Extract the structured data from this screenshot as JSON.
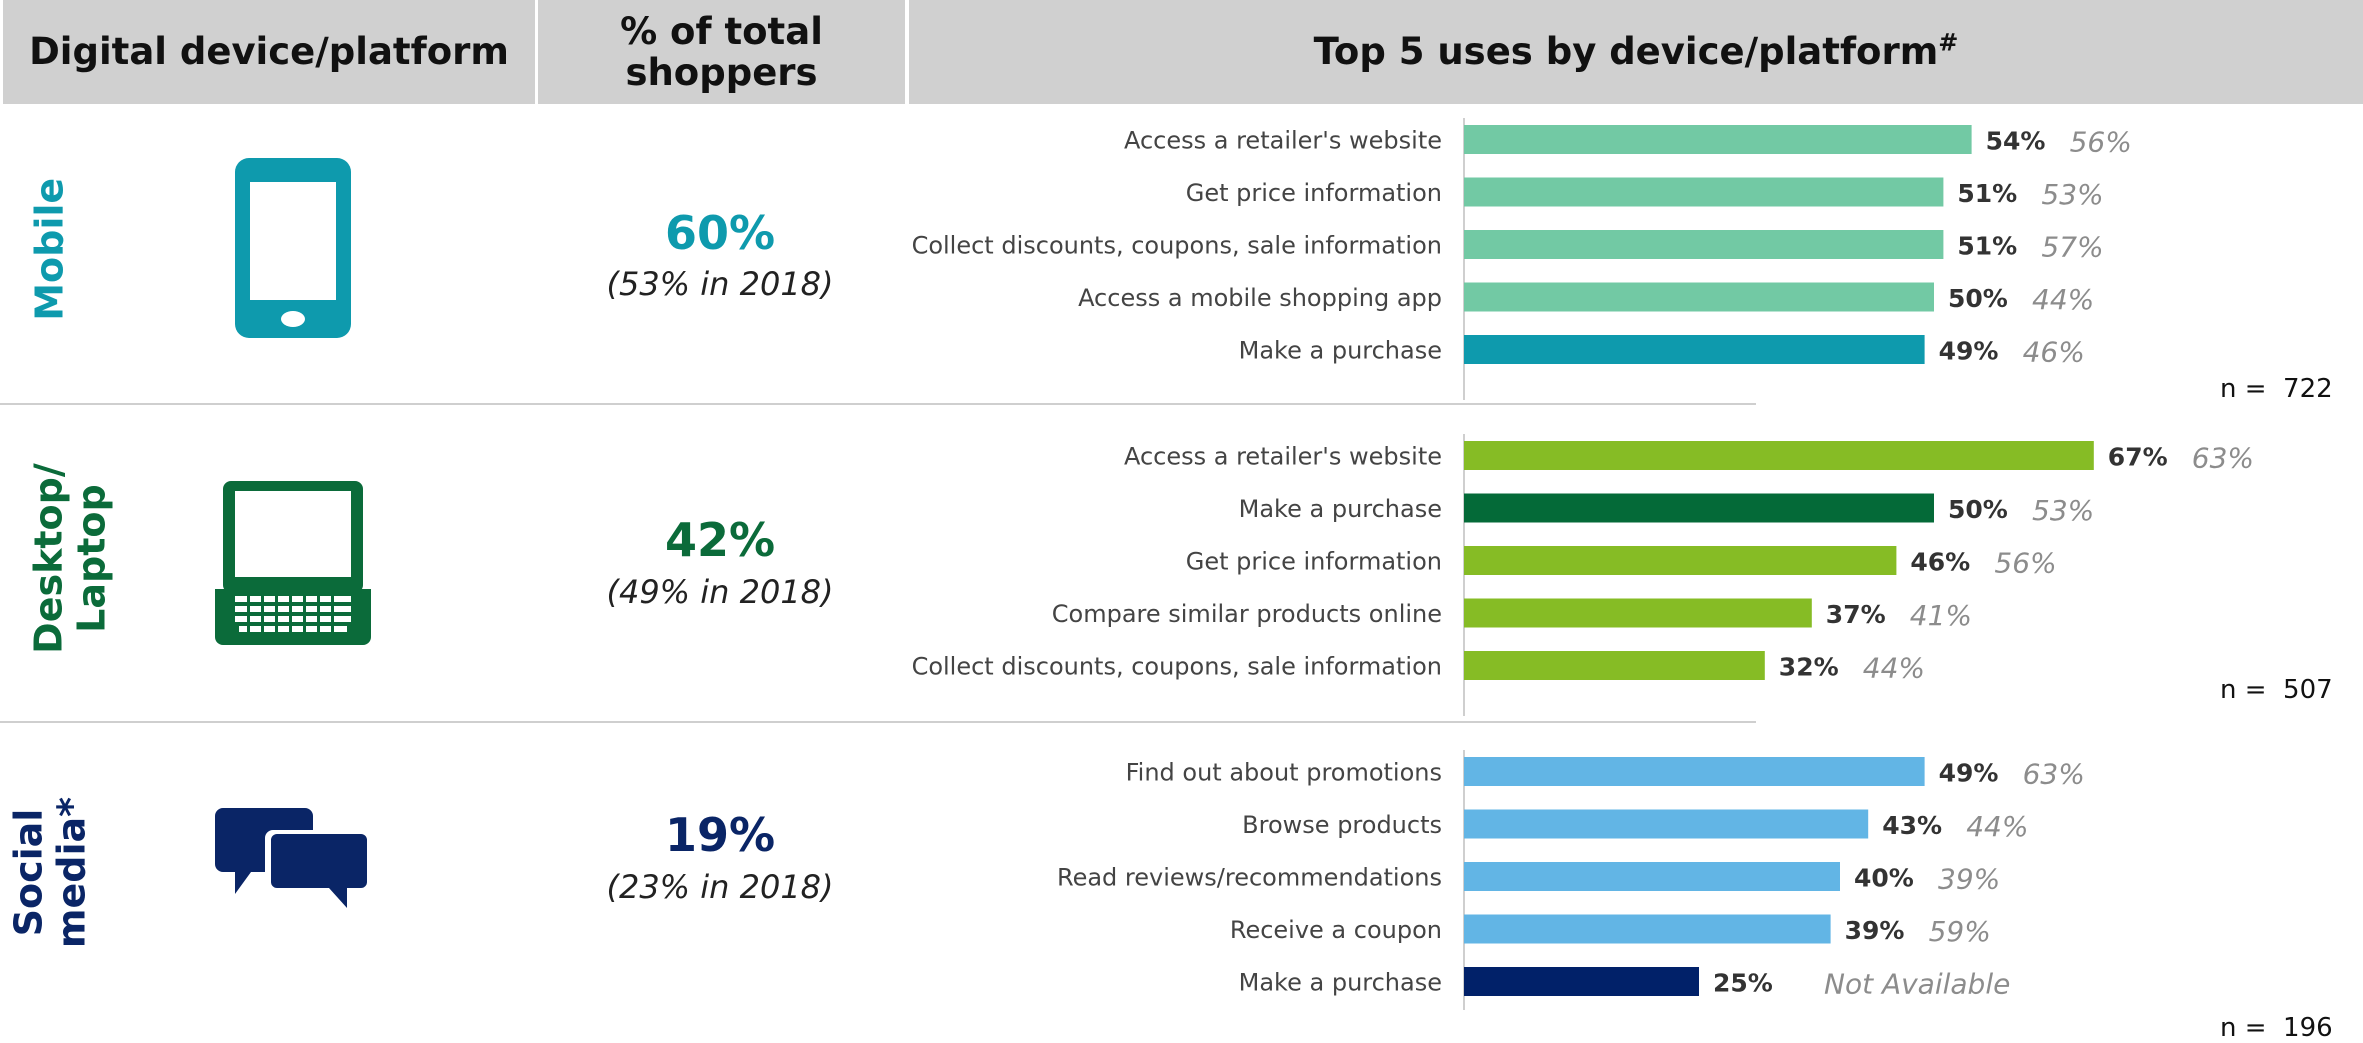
{
  "header": {
    "col1": "Digital device/platform",
    "col2": "% of total shoppers",
    "col3": "Top 5 uses by device/platform",
    "col3_mark": "#"
  },
  "sections": [
    {
      "label": "Mobile",
      "icon": "smartphone-icon",
      "color": "#0e9aad",
      "pct": "60%",
      "prior": "(53% in 2018)",
      "n": "n =  722"
    },
    {
      "label": "Desktop/ Laptop",
      "label_lines": [
        "Desktop/",
        "Laptop"
      ],
      "icon": "laptop-icon",
      "color": "#0b6b3a",
      "pct": "42%",
      "prior": "(49% in 2018)",
      "n": "n =  507"
    },
    {
      "label": "Social media*",
      "label_lines": [
        "Social",
        "media*"
      ],
      "icon": "chat-bubbles-icon",
      "color": "#0a2566",
      "pct": "19%",
      "prior": "(23% in 2018)",
      "n": "n =  196"
    }
  ],
  "chart_data": {
    "type": "bar",
    "orientation": "horizontal",
    "xlim": [
      0,
      100
    ],
    "groups": [
      {
        "name": "Mobile",
        "bar_color": "#72c9a4",
        "highlight_color": "#0e9aad",
        "items": [
          {
            "label": "Access a retailer's website",
            "value": 54,
            "value_label": "54%",
            "prior": "56%"
          },
          {
            "label": "Get price information",
            "value": 51,
            "value_label": "51%",
            "prior": "53%"
          },
          {
            "label": "Collect discounts, coupons, sale information",
            "value": 51,
            "value_label": "51%",
            "prior": "57%"
          },
          {
            "label": "Access a mobile shopping app",
            "value": 50,
            "value_label": "50%",
            "prior": "44%"
          },
          {
            "label": "Make a purchase",
            "value": 49,
            "value_label": "49%",
            "prior": "46%",
            "highlight": true
          }
        ]
      },
      {
        "name": "Desktop/Laptop",
        "bar_color": "#86bc25",
        "highlight_color": "#046a38",
        "items": [
          {
            "label": "Access a retailer's website",
            "value": 67,
            "value_label": "67%",
            "prior": "63%"
          },
          {
            "label": "Make a purchase",
            "value": 50,
            "value_label": "50%",
            "prior": "53%",
            "highlight": true
          },
          {
            "label": "Get price information",
            "value": 46,
            "value_label": "46%",
            "prior": "56%"
          },
          {
            "label": "Compare similar products online",
            "value": 37,
            "value_label": "37%",
            "prior": "41%"
          },
          {
            "label": "Collect discounts, coupons, sale information",
            "value": 32,
            "value_label": "32%",
            "prior": "44%"
          }
        ]
      },
      {
        "name": "Social media",
        "bar_color": "#62b5e5",
        "highlight_color": "#012169",
        "items": [
          {
            "label": "Find out about promotions",
            "value": 49,
            "value_label": "49%",
            "prior": "63%"
          },
          {
            "label": "Browse products",
            "value": 43,
            "value_label": "43%",
            "prior": "44%"
          },
          {
            "label": "Read reviews/recommendations",
            "value": 40,
            "value_label": "40%",
            "prior": "39%"
          },
          {
            "label": "Receive a coupon",
            "value": 39,
            "value_label": "39%",
            "prior": "59%"
          },
          {
            "label": "Make a purchase",
            "value": 25,
            "value_label": "25%",
            "prior": "Not Available",
            "highlight": true
          }
        ]
      }
    ]
  }
}
